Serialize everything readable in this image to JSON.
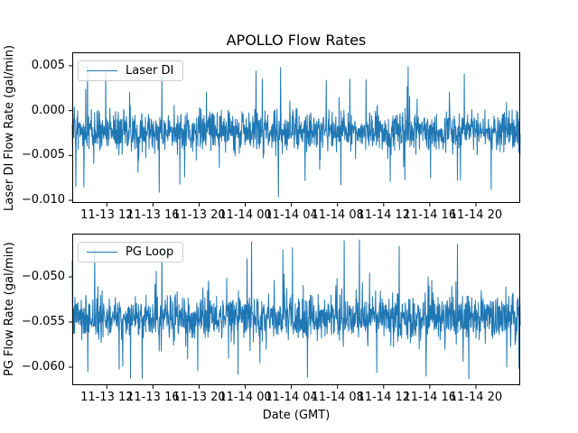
{
  "figure": {
    "title": "APOLLO Flow Rates",
    "background": "#ffffff",
    "text_color": "#000000"
  },
  "xlabel": "Date (GMT)",
  "chart_data": [
    {
      "type": "line",
      "name": "laser-di-subplot",
      "legend": {
        "label": "Laser DI",
        "position": "upper-left"
      },
      "series_color": "#1f77b4",
      "ylabel": "Laser DI Flow Rate (gal/min)",
      "ylim": [
        -0.0103,
        0.0065
      ],
      "grid": false,
      "yticks": [
        {
          "value": 0.005,
          "label": "0.005"
        },
        {
          "value": 0.0,
          "label": "0.000"
        },
        {
          "value": -0.005,
          "label": "−0.005"
        },
        {
          "value": -0.01,
          "label": "−0.010"
        }
      ],
      "xlim_hours": [
        0,
        38.84
      ],
      "xticks": [
        {
          "hours": 3,
          "label": "11-13 12"
        },
        {
          "hours": 7,
          "label": "11-13 16"
        },
        {
          "hours": 11,
          "label": "11-13 20"
        },
        {
          "hours": 15,
          "label": "11-14 00"
        },
        {
          "hours": 19,
          "label": "11-14 04"
        },
        {
          "hours": 23,
          "label": "11-14 08"
        },
        {
          "hours": 27,
          "label": "11-14 12"
        },
        {
          "hours": 31,
          "label": "11-14 16"
        },
        {
          "hours": 35,
          "label": "11-14 20"
        }
      ],
      "noise_model": {
        "n_points": 1500,
        "seed": 42,
        "mean": -0.0023,
        "std_core": 0.0011,
        "tail_prob": 0.07,
        "std_tail": 0.0027,
        "clip_min": -0.0101,
        "clip_max": 0.0056
      },
      "feature_spikes": [
        {
          "frac": 0.026,
          "value": -0.0085
        },
        {
          "frac": 0.034,
          "value": 0.005
        },
        {
          "frac": 0.075,
          "value": 0.0042
        },
        {
          "frac": 0.147,
          "value": -0.0069
        },
        {
          "frac": 0.194,
          "value": -0.0091
        },
        {
          "frac": 0.2,
          "value": 0.0039
        },
        {
          "frac": 0.24,
          "value": -0.0082
        },
        {
          "frac": 0.41,
          "value": 0.0044
        },
        {
          "frac": 0.46,
          "value": -0.0096
        },
        {
          "frac": 0.465,
          "value": 0.0048
        },
        {
          "frac": 0.52,
          "value": -0.0078
        },
        {
          "frac": 0.6,
          "value": -0.0083
        },
        {
          "frac": 0.62,
          "value": 0.0035
        },
        {
          "frac": 0.71,
          "value": -0.0079
        },
        {
          "frac": 0.75,
          "value": 0.0049
        },
        {
          "frac": 0.8,
          "value": -0.0075
        },
        {
          "frac": 0.875,
          "value": 0.0041
        },
        {
          "frac": 0.935,
          "value": -0.0088
        }
      ]
    },
    {
      "type": "line",
      "name": "pg-loop-subplot",
      "legend": {
        "label": "PG Loop",
        "position": "upper-left"
      },
      "series_color": "#1f77b4",
      "ylabel": "PG Flow Rate (gal/min)",
      "ylim": [
        -0.062,
        -0.0452
      ],
      "grid": false,
      "yticks": [
        {
          "value": -0.05,
          "label": "−0.050"
        },
        {
          "value": -0.055,
          "label": "−0.055"
        },
        {
          "value": -0.06,
          "label": "−0.060"
        }
      ],
      "xlim_hours": [
        0,
        38.84
      ],
      "xticks": [
        {
          "hours": 3,
          "label": "11-13 12"
        },
        {
          "hours": 7,
          "label": "11-13 16"
        },
        {
          "hours": 11,
          "label": "11-13 20"
        },
        {
          "hours": 15,
          "label": "11-14 00"
        },
        {
          "hours": 19,
          "label": "11-14 04"
        },
        {
          "hours": 23,
          "label": "11-14 08"
        },
        {
          "hours": 27,
          "label": "11-14 12"
        },
        {
          "hours": 31,
          "label": "11-14 16"
        },
        {
          "hours": 35,
          "label": "11-14 20"
        }
      ],
      "noise_model": {
        "n_points": 1500,
        "seed": 7,
        "mean": -0.0545,
        "std_core": 0.00115,
        "tail_prob": 0.08,
        "std_tail": 0.0027,
        "clip_min": -0.0616,
        "clip_max": -0.0459
      },
      "feature_spikes": [
        {
          "frac": 0.035,
          "value": -0.0605
        },
        {
          "frac": 0.05,
          "value": -0.0468
        },
        {
          "frac": 0.13,
          "value": -0.0612
        },
        {
          "frac": 0.2,
          "value": -0.0472
        },
        {
          "frac": 0.28,
          "value": -0.0604
        },
        {
          "frac": 0.37,
          "value": -0.0608
        },
        {
          "frac": 0.4,
          "value": -0.0461
        },
        {
          "frac": 0.47,
          "value": -0.047
        },
        {
          "frac": 0.525,
          "value": -0.0611
        },
        {
          "frac": 0.607,
          "value": -0.046
        },
        {
          "frac": 0.68,
          "value": -0.0606
        },
        {
          "frac": 0.73,
          "value": -0.0466
        },
        {
          "frac": 0.79,
          "value": -0.061
        },
        {
          "frac": 0.86,
          "value": -0.0464
        },
        {
          "frac": 0.885,
          "value": -0.0613
        },
        {
          "frac": 0.97,
          "value": -0.06
        }
      ]
    }
  ]
}
